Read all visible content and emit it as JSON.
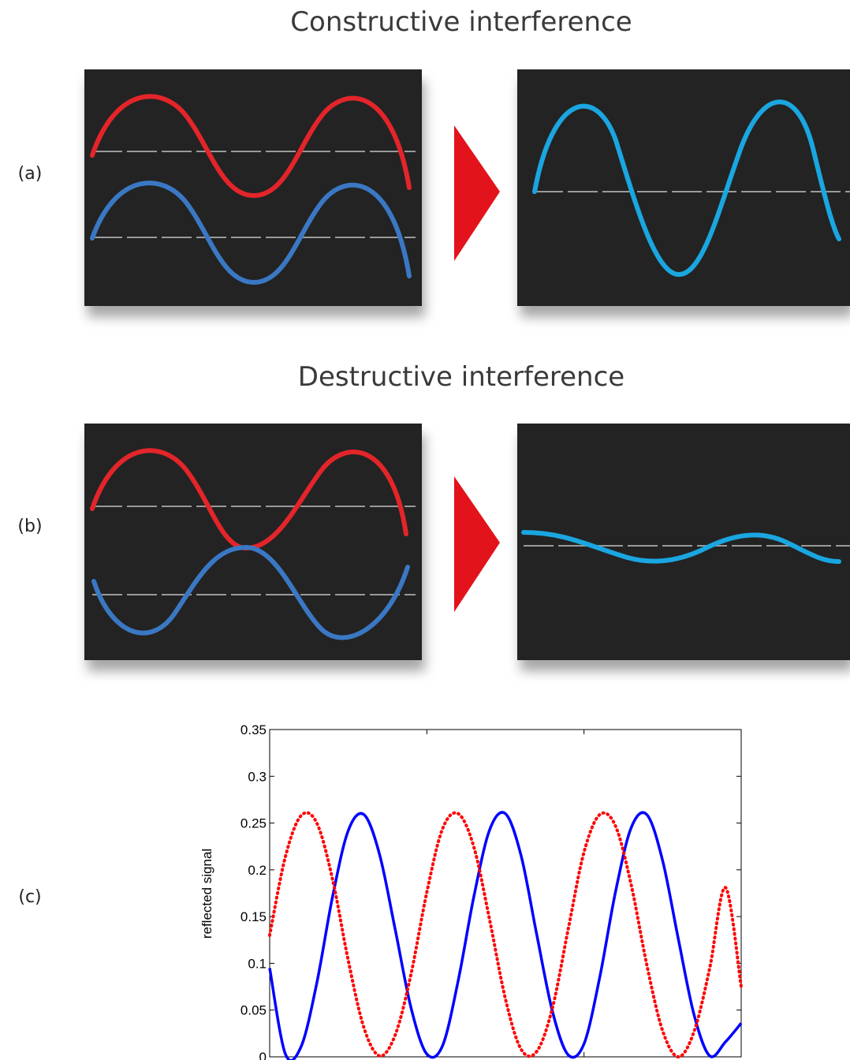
{
  "constructive": {
    "title": "Constructive interference",
    "label": "(a)"
  },
  "destructive": {
    "title": "Destructive interference",
    "label": "(b)"
  },
  "plot_label": "(c)",
  "colors": {
    "red_wave": "#e3252a",
    "blue_wave": "#3a78c4",
    "result_wave": "#1aa6e0",
    "panel_bg": "#232323",
    "arrow": "#e3131b",
    "baseline": "#9a9a9a"
  },
  "chart_data": {
    "type": "line",
    "title": "",
    "xlabel": "",
    "ylabel": "reflected signal",
    "xlim": [
      0,
      3
    ],
    "ylim": [
      0,
      0.35
    ],
    "yticks": [
      "0",
      "0.05",
      "0.1",
      "0.15",
      "0.2",
      "0.25",
      "0.3",
      "0.35"
    ],
    "xticks": [],
    "grid": false,
    "series": [
      {
        "style": "solid",
        "color": "#0000ff",
        "x": [
          0,
          0.1,
          0.2,
          0.3,
          0.4,
          0.5,
          0.6,
          0.7,
          0.8,
          0.9,
          1.0,
          1.1,
          1.2,
          1.3,
          1.4,
          1.5,
          1.6,
          1.7,
          1.8,
          1.9,
          2.0,
          2.1,
          2.2,
          2.3,
          2.4,
          2.5,
          2.6,
          2.7,
          2.8,
          2.9,
          3.0
        ],
        "y": [
          0.095,
          0.003,
          0.011,
          0.079,
          0.171,
          0.242,
          0.259,
          0.216,
          0.135,
          0.052,
          0.003,
          0.012,
          0.082,
          0.172,
          0.243,
          0.26,
          0.215,
          0.13,
          0.048,
          0.002,
          0.014,
          0.085,
          0.176,
          0.245,
          0.259,
          0.21,
          0.126,
          0.045,
          0.001,
          0.016,
          0.036
        ]
      },
      {
        "style": "dotted",
        "color": "#ff0000",
        "x": [
          0,
          0.1,
          0.2,
          0.3,
          0.4,
          0.5,
          0.6,
          0.7,
          0.8,
          0.9,
          1.0,
          1.1,
          1.2,
          1.3,
          1.4,
          1.5,
          1.6,
          1.7,
          1.8,
          1.9,
          2.0,
          2.1,
          2.2,
          2.3,
          2.4,
          2.5,
          2.6,
          2.7,
          2.8,
          2.9,
          3.0
        ],
        "y": [
          0.13,
          0.214,
          0.258,
          0.25,
          0.19,
          0.103,
          0.031,
          0.001,
          0.024,
          0.089,
          0.176,
          0.244,
          0.26,
          0.224,
          0.146,
          0.062,
          0.008,
          0.006,
          0.053,
          0.137,
          0.219,
          0.259,
          0.247,
          0.184,
          0.098,
          0.028,
          0.0,
          0.027,
          0.095,
          0.181,
          0.075
        ]
      }
    ]
  }
}
